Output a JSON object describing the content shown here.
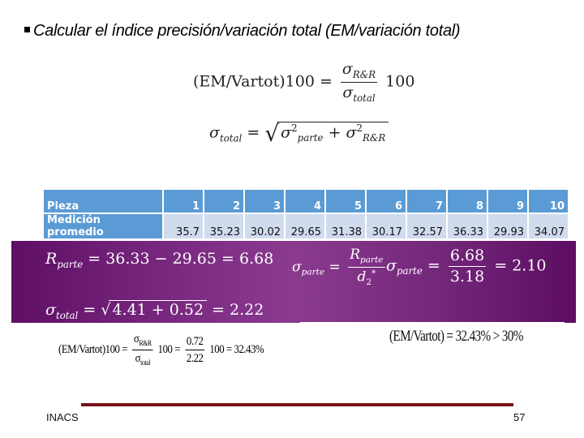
{
  "slide": {
    "title": "Calcular el índice precisión/variación total (EM/variación total)",
    "formula_ratio": {
      "lhs": "(EM/Vartot)100 =",
      "numerator": "σ",
      "numerator_sub": "R&R",
      "denominator": "σ",
      "denominator_sub": "total",
      "multiplier": "100"
    },
    "formula_total": {
      "lhs": "σ",
      "lhs_sub": "total",
      "eq": "=",
      "term1": "σ",
      "term1_sup": "2",
      "term1_sub": "parte",
      "plus": "+",
      "term2": "σ",
      "term2_sup": "2",
      "term2_sub": "R&R"
    },
    "table": {
      "header_label": "Pieza",
      "row_label": "Medición promedio",
      "pieces": [
        "1",
        "2",
        "3",
        "4",
        "5",
        "6",
        "7",
        "8",
        "9",
        "10"
      ],
      "measurements": [
        "35.7",
        "35.23",
        "30.02",
        "29.65",
        "31.38",
        "30.17",
        "32.57",
        "36.33",
        "29.93",
        "34.07"
      ]
    },
    "calc": {
      "r_parte": {
        "lhs": "R",
        "lhs_sub": "parte",
        "rhs": "= 36.33 − 29.65 = 6.68"
      },
      "sigma_total": {
        "lhs": "σ",
        "lhs_sub": "total",
        "eq": "=",
        "radicand": "4.41 + 0.52",
        "result": "= 2.22"
      },
      "sigma_parte_def": {
        "lhs": "σ",
        "lhs_sub": "parte",
        "eq": "=",
        "num": "R",
        "num_sub": "parte",
        "den": "d",
        "den_sub": "2",
        "den_sup": "*"
      },
      "sigma_parte_val": {
        "lhs": "σ",
        "lhs_sub": "parte",
        "eq": "=",
        "num": "6.68",
        "den": "3.18",
        "result": "= 2.10"
      }
    },
    "result": {
      "lhs": "(EM/Vartot)100 =",
      "num1": "σ",
      "num1_sub": "R&R",
      "den1": "σ",
      "den1_sub": "total",
      "mid": "100 =",
      "num2": "0.72",
      "den2": "2.22",
      "end": "100 = 32.43%",
      "conclusion": "(EM/Vartot) = 32.43% > 30%"
    },
    "footer": {
      "left": "INACS",
      "page": "57"
    },
    "colors": {
      "table_header": "#5b9bd5",
      "table_cell": "#d0dbee",
      "purple_band": "#7b2a82",
      "footer_line": "#7a1418"
    }
  }
}
